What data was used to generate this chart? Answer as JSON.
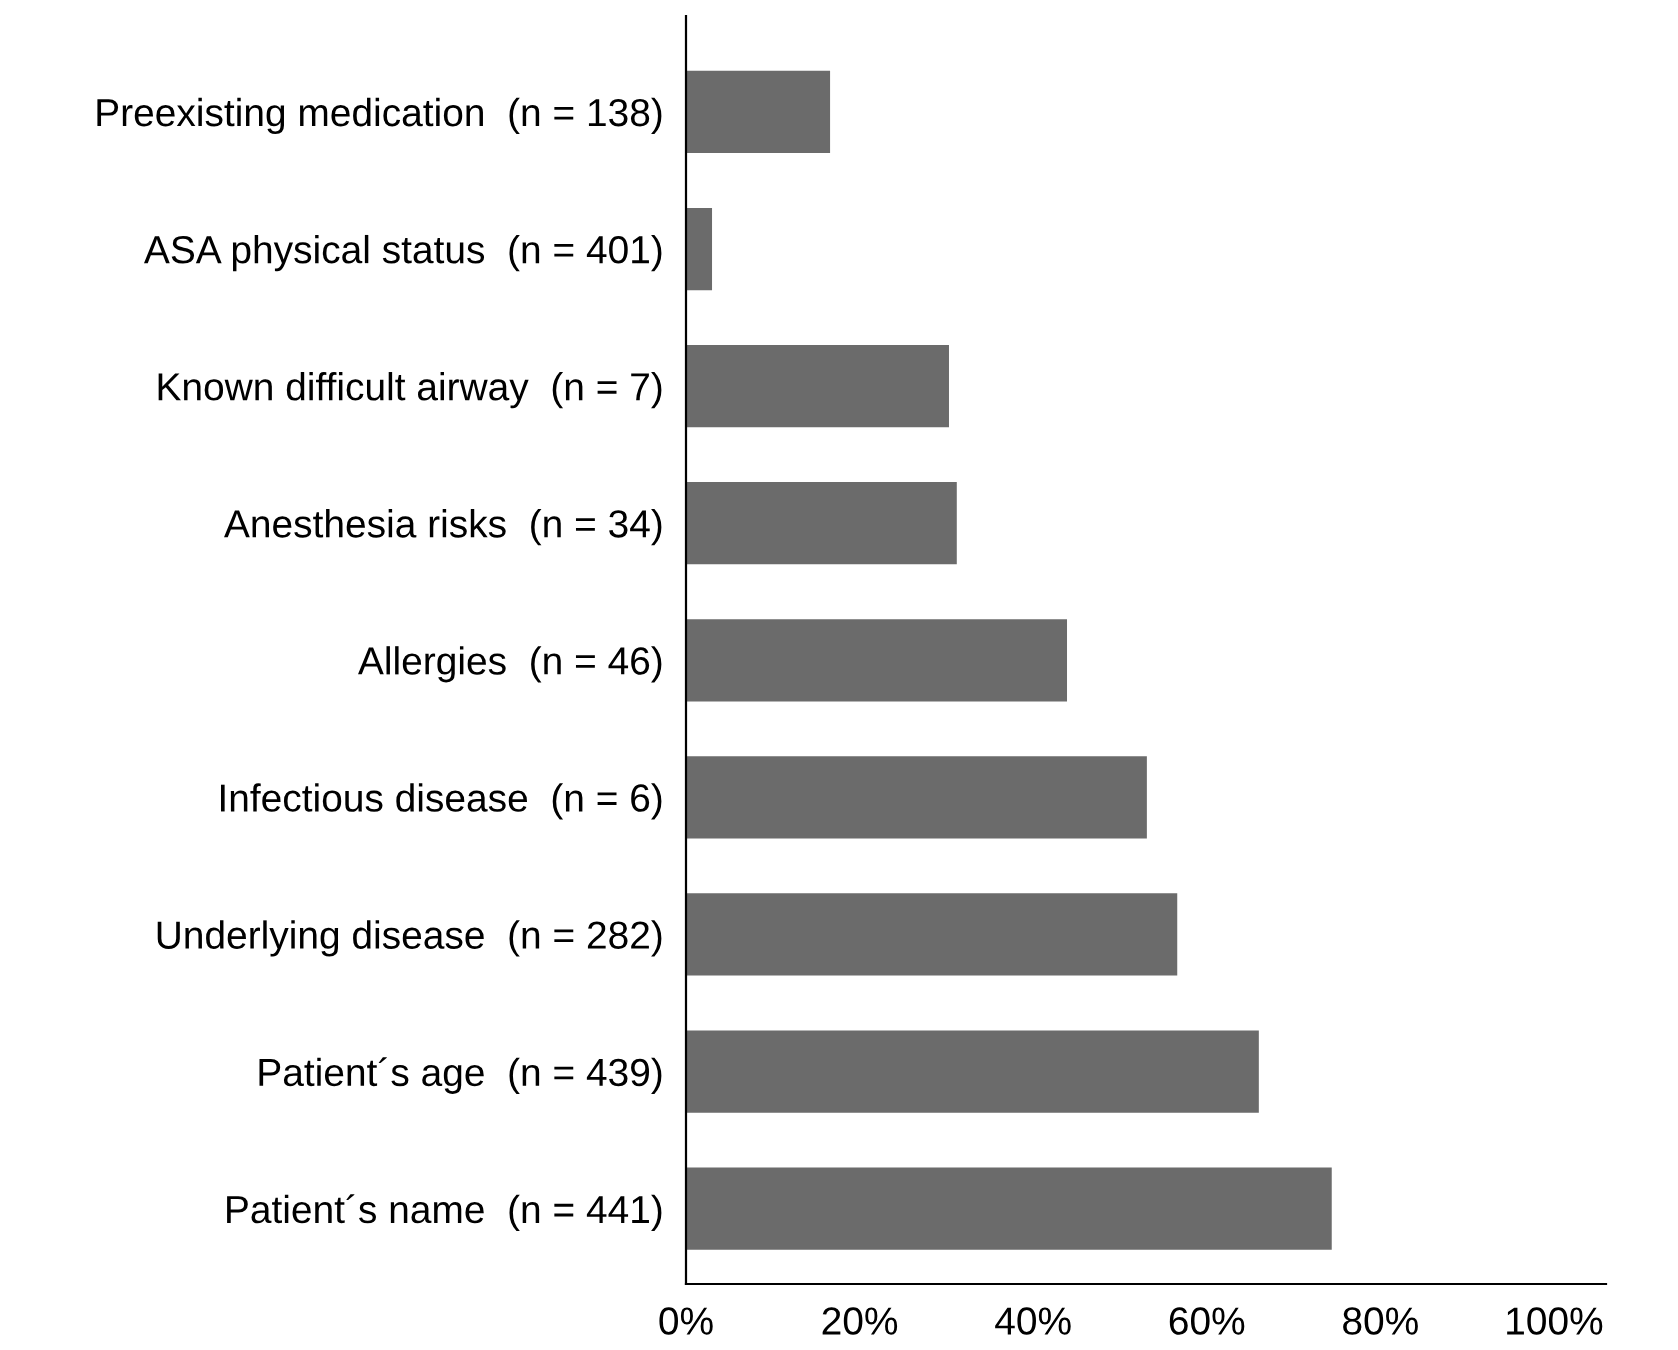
{
  "chart_data": {
    "type": "bar",
    "orientation": "horizontal",
    "categories": [
      "Preexisting medication  (n = 138)",
      "ASA physical status  (n = 401)",
      "Known difficult airway  (n = 7)",
      "Anesthesia risks  (n = 34)",
      "Allergies  (n = 46)",
      "Infectious disease  (n = 6)",
      "Underlying disease  (n = 282)",
      "Patient´s age  (n = 439)",
      "Patient´s name  (n = 441)"
    ],
    "values": [
      16.6,
      3,
      30.3,
      31.2,
      43.9,
      53.1,
      56.6,
      66,
      74.4
    ],
    "color": "#6b6b6b",
    "xlim": [
      0,
      106
    ],
    "xticks": [
      {
        "value": 0,
        "label": "0%"
      },
      {
        "value": 20,
        "label": "20%"
      },
      {
        "value": 40,
        "label": "40%"
      },
      {
        "value": 60,
        "label": "60%"
      },
      {
        "value": 80,
        "label": "80%"
      },
      {
        "value": 100,
        "label": "100%"
      }
    ],
    "grid": false,
    "legend": false
  }
}
